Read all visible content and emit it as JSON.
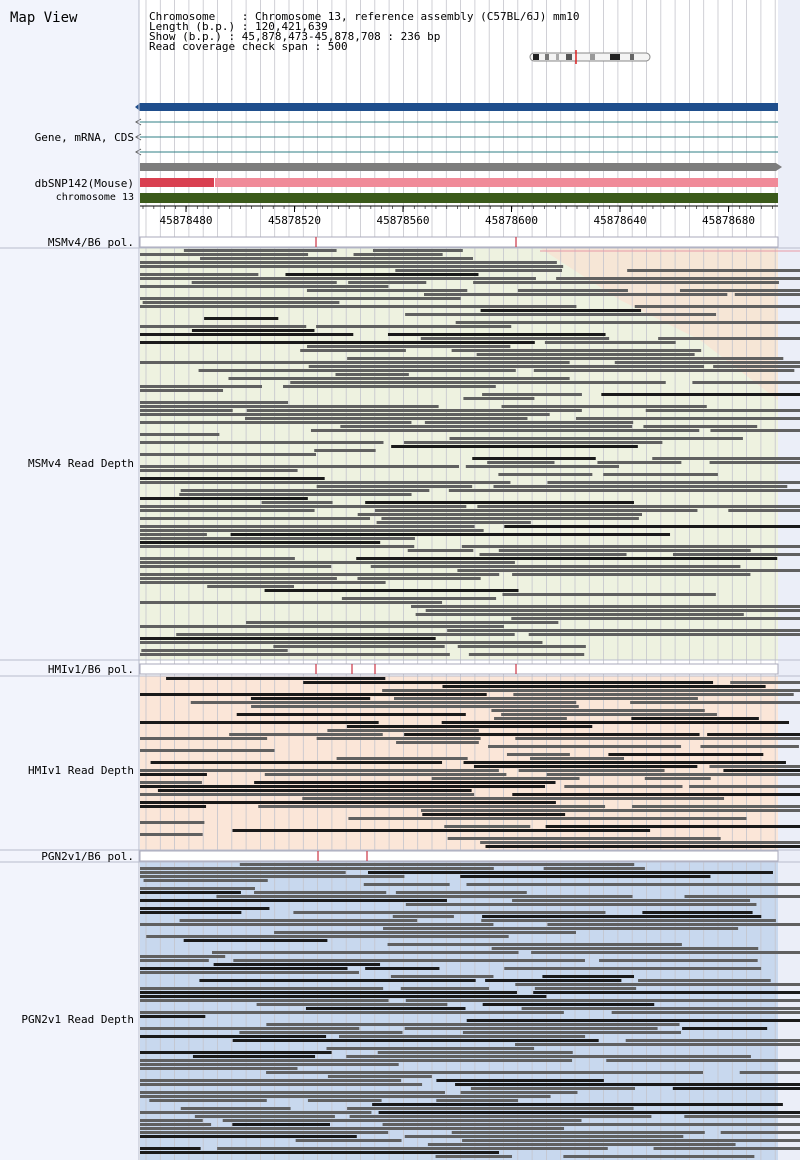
{
  "app": {
    "title": "Map View"
  },
  "info": {
    "chromosome_line": "Chromosome    : Chromosome 13, reference assembly (C57BL/6J) mm10",
    "length_line": "Length (b.p.) : 120,421,639",
    "show_line": "Show (b.p.) : 45,878,473-45,878,708 : 236 bp",
    "coverage_line": "Read coverage check span : 500"
  },
  "tracks": {
    "gene": "Gene, mRNA, CDS",
    "dbsnp": "dbSNP142(Mouse)",
    "chromosome": "chromosome 13",
    "msm_pol": "MSMv4/B6 pol.",
    "msm_depth": "MSMv4 Read Depth",
    "hmi_pol": "HMIv1/B6 pol.",
    "hmi_depth": "HMIv1 Read Depth",
    "pgn_pol": "PGN2v1/B6 pol.",
    "pgn_depth": "PGN2v1 Read Depth"
  },
  "ruler": {
    "ticks": [
      "45878480",
      "45878520",
      "45878560",
      "45878600",
      "45878640",
      "45878680"
    ]
  },
  "colors": {
    "gene_bar": "#1f4e8c",
    "transcript_line": "#2f7f86",
    "dbsnp_bar": "#7d7d7d",
    "snp_red": "#d94050",
    "snp_pink": "#f08a98",
    "chromosome_bar": "#3b5a1a",
    "msm_bg": "#eef2e0",
    "hmi_bg": "#fbe6d8",
    "pgn_bg": "#c8d8ee",
    "read_gray": "#606060",
    "read_dark": "#1a1a1a",
    "pol_mark": "#cc3344"
  }
}
